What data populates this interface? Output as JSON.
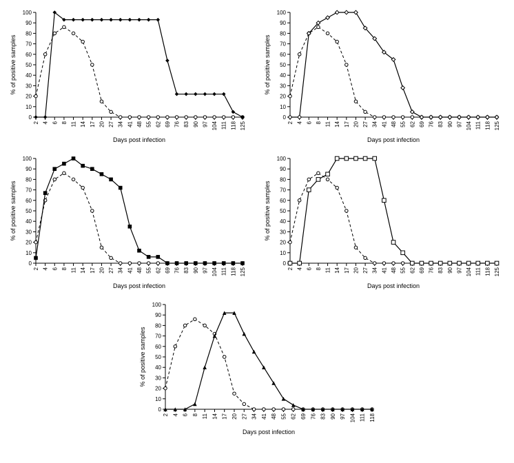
{
  "global": {
    "ylabel": "% of positive samples",
    "xlabel": "Days post infection",
    "ylim": [
      0,
      100
    ],
    "ytick_step": 10,
    "yticks": [
      0,
      10,
      20,
      30,
      40,
      50,
      60,
      70,
      80,
      90,
      100
    ],
    "xticks": [
      "2",
      "4",
      "6",
      "8",
      "11",
      "14",
      "17",
      "20",
      "27",
      "34",
      "41",
      "48",
      "55",
      "62",
      "69",
      "76",
      "83",
      "90",
      "97",
      "104",
      "111",
      "118",
      "125"
    ],
    "xticks_short": [
      "2",
      "4",
      "6",
      "8",
      "11",
      "14",
      "17",
      "20",
      "27",
      "34",
      "41",
      "48",
      "55",
      "62",
      "69",
      "76",
      "83",
      "90",
      "97",
      "104",
      "111",
      "118"
    ],
    "background_color": "#ffffff",
    "line_color": "#000000",
    "label_fontsize": 9,
    "tick_fontsize": 8
  },
  "panels": [
    {
      "id": "top-left",
      "type": "line",
      "marker_solid": "diamond-filled",
      "marker_dashed": "circle-open",
      "solid_y": [
        0,
        0,
        100,
        93,
        93,
        93,
        93,
        93,
        93,
        93,
        93,
        93,
        93,
        93,
        54,
        22,
        22,
        22,
        22,
        22,
        22,
        5,
        0
      ],
      "dashed_y": [
        20,
        60,
        80,
        86,
        80,
        72,
        50,
        15,
        5,
        0,
        0,
        0,
        0,
        0,
        0,
        0,
        0,
        0,
        0,
        0,
        0,
        0,
        0
      ]
    },
    {
      "id": "top-right",
      "type": "line",
      "marker_solid": "diamond-open",
      "marker_dashed": "circle-open",
      "solid_y": [
        0,
        0,
        80,
        90,
        95,
        100,
        100,
        100,
        85,
        75,
        62,
        55,
        28,
        5,
        0,
        0,
        0,
        0,
        0,
        0,
        0,
        0,
        0
      ],
      "dashed_y": [
        20,
        60,
        80,
        86,
        80,
        72,
        50,
        15,
        5,
        0,
        0,
        0,
        0,
        0,
        0,
        0,
        0,
        0,
        0,
        0,
        0,
        0,
        0
      ]
    },
    {
      "id": "mid-left",
      "type": "line",
      "marker_solid": "square-filled",
      "marker_dashed": "circle-open",
      "solid_y": [
        5,
        67,
        90,
        95,
        100,
        93,
        90,
        85,
        80,
        72,
        35,
        12,
        6,
        6,
        0,
        0,
        0,
        0,
        0,
        0,
        0,
        0,
        0
      ],
      "dashed_y": [
        20,
        60,
        80,
        86,
        80,
        72,
        50,
        15,
        5,
        0,
        0,
        0,
        0,
        0,
        0,
        0,
        0,
        0,
        0,
        0,
        0,
        0,
        0
      ]
    },
    {
      "id": "mid-right",
      "type": "line",
      "marker_solid": "square-open",
      "marker_dashed": "circle-open",
      "solid_y": [
        0,
        0,
        70,
        80,
        85,
        100,
        100,
        100,
        100,
        100,
        60,
        20,
        10,
        0,
        0,
        0,
        0,
        0,
        0,
        0,
        0,
        0,
        0
      ],
      "dashed_y": [
        20,
        60,
        80,
        86,
        80,
        72,
        50,
        15,
        5,
        0,
        0,
        0,
        0,
        0,
        0,
        0,
        0,
        0,
        0,
        0,
        0,
        0,
        0
      ]
    },
    {
      "id": "bottom",
      "type": "line",
      "marker_solid": "triangle-filled",
      "marker_dashed": "circle-open",
      "short_x": true,
      "solid_y": [
        0,
        0,
        0,
        5,
        40,
        70,
        92,
        92,
        72,
        55,
        40,
        25,
        10,
        4,
        0,
        0,
        0,
        0,
        0,
        0,
        0,
        0
      ],
      "dashed_y": [
        20,
        60,
        80,
        86,
        80,
        72,
        50,
        15,
        5,
        0,
        0,
        0,
        0,
        0,
        0,
        0,
        0,
        0,
        0,
        0,
        0,
        0
      ]
    }
  ]
}
